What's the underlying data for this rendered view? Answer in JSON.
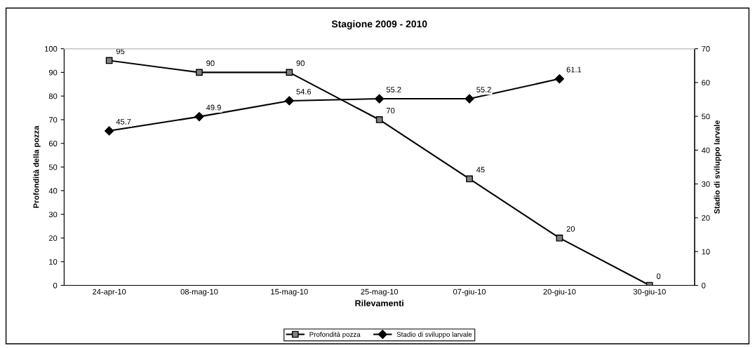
{
  "chart_data": {
    "type": "line",
    "title": "Stagione 2009 - 2010",
    "xlabel": "Rilevamenti",
    "ylabel": "Profondità della pozza",
    "y2label": "Stadio di sviluppo larvale",
    "categories": [
      "24-apr-10",
      "08-mag-10",
      "15-mag-10",
      "25-mag-10",
      "07-giu-10",
      "20-giu-10",
      "30-giu-10"
    ],
    "series": [
      {
        "name": "Profondità pozza",
        "color": "#000000",
        "marker": "square",
        "values": [
          95,
          90,
          90,
          70,
          45,
          20,
          0
        ]
      },
      {
        "name": "Stadio di sviluppo larvale",
        "color": "#000000",
        "marker": "diamond",
        "axis": "y2",
        "values": [
          45.7,
          49.9,
          54.6,
          55.2,
          55.2,
          61.1,
          null
        ]
      }
    ],
    "ylim": [
      0,
      100
    ],
    "yticks": [
      0,
      10,
      20,
      30,
      40,
      50,
      60,
      70,
      80,
      90,
      100
    ],
    "y2lim": [
      0,
      70
    ],
    "y2ticks": [
      0,
      10,
      20,
      30,
      40,
      50,
      60,
      70
    ],
    "data_labels": true,
    "grid": false,
    "legend": "bottom",
    "line_style": "solid"
  }
}
